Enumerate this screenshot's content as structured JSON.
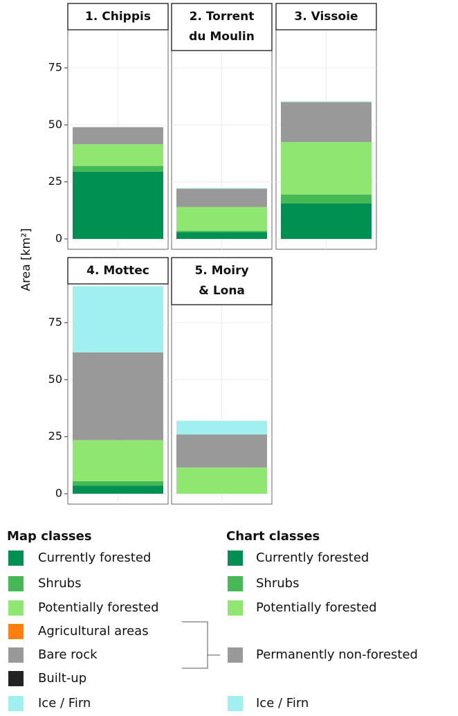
{
  "chart_data": {
    "type": "bar",
    "stacked": true,
    "y_label": "Area [km²]",
    "facets": [
      [
        "1. Chippis"
      ],
      [
        "2. Torrent",
        "du Moulin"
      ],
      [
        "3. Vissoie"
      ],
      [
        "4. Mottec"
      ],
      [
        "5. Moiry",
        "& Lona"
      ]
    ],
    "ylim": [
      -4.55,
      92
    ],
    "yticks": [
      0,
      25,
      50,
      75
    ],
    "grid": true,
    "series": [
      {
        "name": "Currently forested",
        "color": "#009051",
        "values": [
          29.5,
          3,
          15.5,
          3.5,
          0
        ]
      },
      {
        "name": "Shrubs",
        "color": "#45b955",
        "values": [
          2.5,
          0.5,
          4,
          2,
          0
        ]
      },
      {
        "name": "Potentially forested",
        "color": "#8fe772",
        "values": [
          9.5,
          10.5,
          23,
          18,
          11.5
        ]
      },
      {
        "name": "Permanently non-forested",
        "color": "#999999",
        "values": [
          7.5,
          8,
          17.5,
          38.5,
          14.5
        ]
      },
      {
        "name": "Ice / Firn",
        "color": "#a0f0f0",
        "values": [
          0,
          0.3,
          0.3,
          29,
          6
        ]
      }
    ],
    "legend_title": "Chart classes",
    "map_legend": {
      "title": "Map classes",
      "items": [
        {
          "name": "Currently forested",
          "color": "#009051"
        },
        {
          "name": "Shrubs",
          "color": "#45b955"
        },
        {
          "name": "Potentially forested",
          "color": "#8fe772"
        },
        {
          "name": "Agricultural areas",
          "color": "#ff7f0e"
        },
        {
          "name": "Bare rock",
          "color": "#999999"
        },
        {
          "name": "Built-up",
          "color": "#222222"
        },
        {
          "name": "Ice / Firn",
          "color": "#a0f0f0"
        }
      ]
    }
  }
}
